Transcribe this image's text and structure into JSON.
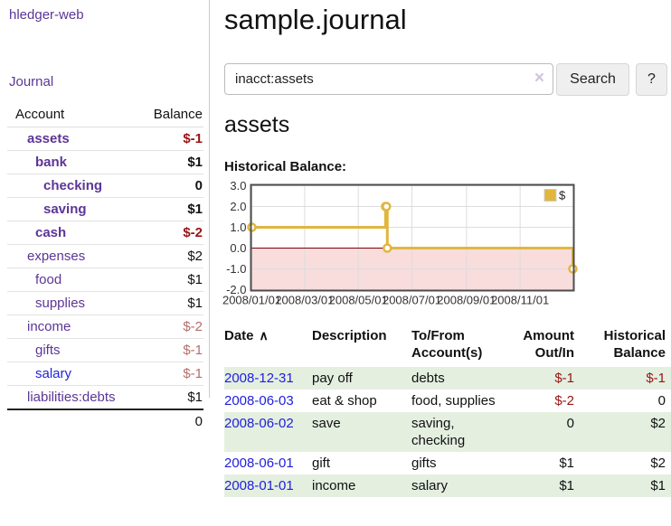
{
  "app": {
    "title": "hledger-web",
    "nav_journal": "Journal"
  },
  "colors": {
    "link_purple": "#5c3597",
    "link_blue": "#2020dd",
    "negative": "#991414",
    "muted_negative": "#b76c6c",
    "line_gold": "#e0b63e",
    "negative_fill": "#f9dcdc",
    "zero_line": "#7d0000",
    "grid": "#dddddd",
    "chart_border": "#4d4d4d",
    "row_green": "#e4efe0"
  },
  "sidebar": {
    "table": {
      "headers": {
        "account": "Account",
        "balance": "Balance"
      },
      "rows": [
        {
          "name": "assets",
          "indent": 1,
          "bold": true,
          "balance": "$-1",
          "tone": "neg"
        },
        {
          "name": "bank",
          "indent": 2,
          "bold": true,
          "balance": "$1",
          "tone": ""
        },
        {
          "name": "checking",
          "indent": 3,
          "bold": true,
          "balance": "0",
          "tone": ""
        },
        {
          "name": "saving",
          "indent": 3,
          "bold": true,
          "balance": "$1",
          "tone": ""
        },
        {
          "name": "cash",
          "indent": 2,
          "bold": true,
          "balance": "$-2",
          "tone": "neg"
        },
        {
          "name": "expenses",
          "indent": 1,
          "bold": false,
          "balance": "$2",
          "tone": ""
        },
        {
          "name": "food",
          "indent": 2,
          "bold": false,
          "balance": "$1",
          "tone": ""
        },
        {
          "name": "supplies",
          "indent": 2,
          "bold": false,
          "balance": "$1",
          "tone": ""
        },
        {
          "name": "income",
          "indent": 1,
          "bold": false,
          "balance": "$-2",
          "tone": "mneg"
        },
        {
          "name": "gifts",
          "indent": 2,
          "bold": false,
          "balance": "$-1",
          "tone": "mneg"
        },
        {
          "name": "salary",
          "indent": 2,
          "bold": false,
          "balance": "$-1",
          "tone": "mneg",
          "link": "blue"
        },
        {
          "name": "liabilities:debts",
          "indent": 1,
          "bold": false,
          "balance": "$1",
          "tone": ""
        }
      ],
      "total": "0"
    }
  },
  "header": {
    "title": "sample.journal"
  },
  "search": {
    "value": "inacct:assets",
    "clear_icon": "×",
    "button_label": "Search",
    "help_label": "?"
  },
  "account_page": {
    "heading": "assets",
    "chart_label": "Historical Balance:"
  },
  "chart_data": {
    "type": "line",
    "step": true,
    "series": [
      {
        "name": "$",
        "points": [
          [
            "2008-01-01",
            1
          ],
          [
            "2008-06-01",
            2
          ],
          [
            "2008-06-02",
            2
          ],
          [
            "2008-06-03",
            0
          ],
          [
            "2008-12-31",
            -1
          ]
        ]
      }
    ],
    "xrange": [
      "2008-01-01",
      "2008-12-31"
    ],
    "ylim": [
      -2,
      3
    ],
    "yticks": [
      "3.0",
      "2.0",
      "1.0",
      "0.0",
      "-1.0",
      "-2.0"
    ],
    "ytick_values": [
      3,
      2,
      1,
      0,
      -1,
      -2
    ],
    "xticks": [
      "2008/01/01",
      "2008/03/01",
      "2008/05/01",
      "2008/07/01",
      "2008/09/01",
      "2008/11/01"
    ],
    "legend": "$",
    "grid": true,
    "legend_position": "top-right",
    "negative_region_shaded": true
  },
  "register": {
    "columns": [
      {
        "lines": [
          "Date"
        ],
        "align": "left",
        "sort_icon": "∧"
      },
      {
        "lines": [
          "Description"
        ],
        "align": "left"
      },
      {
        "lines": [
          "To/From",
          "Account(s)"
        ],
        "align": "left"
      },
      {
        "lines": [
          "Amount",
          "Out/In"
        ],
        "align": "right"
      },
      {
        "lines": [
          "Historical",
          "Balance"
        ],
        "align": "right"
      }
    ],
    "rows": [
      {
        "date": "2008-12-31",
        "description": "pay off",
        "accounts": "debts",
        "amount": "$-1",
        "amount_tone": "neg",
        "balance": "$-1",
        "balance_tone": "neg",
        "shaded": true
      },
      {
        "date": "2008-06-03",
        "description": "eat & shop",
        "accounts": "food, supplies",
        "amount": "$-2",
        "amount_tone": "neg",
        "balance": "0",
        "balance_tone": "",
        "shaded": false
      },
      {
        "date": "2008-06-02",
        "description": "save",
        "accounts": "saving, checking",
        "amount": "0",
        "amount_tone": "",
        "balance": "$2",
        "balance_tone": "",
        "shaded": true
      },
      {
        "date": "2008-06-01",
        "description": "gift",
        "accounts": "gifts",
        "amount": "$1",
        "amount_tone": "",
        "balance": "$2",
        "balance_tone": "",
        "shaded": false
      },
      {
        "date": "2008-01-01",
        "description": "income",
        "accounts": "salary",
        "amount": "$1",
        "amount_tone": "",
        "balance": "$1",
        "balance_tone": "",
        "shaded": true
      }
    ]
  }
}
